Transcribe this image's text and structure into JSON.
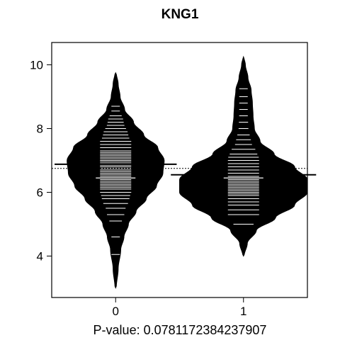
{
  "chart_data": {
    "type": "beanplot",
    "title": "KNG1",
    "xlabel": "P-value: 0.0781172384237907",
    "ylabel": "",
    "categories": [
      "0",
      "1"
    ],
    "xlim": [
      -0.5,
      1.5
    ],
    "ylim": [
      2.7,
      10.7
    ],
    "yticks": [
      4,
      6,
      8,
      10
    ],
    "overall_mean": 6.75,
    "series": [
      {
        "group": "0",
        "mean": 6.88,
        "median": 6.45,
        "min": 3.0,
        "max": 9.75,
        "density": [
          [
            3.0,
            0.005
          ],
          [
            3.6,
            0.02
          ],
          [
            4.2,
            0.04
          ],
          [
            4.6,
            0.065
          ],
          [
            5.0,
            0.1
          ],
          [
            5.4,
            0.16
          ],
          [
            5.8,
            0.24
          ],
          [
            6.2,
            0.32
          ],
          [
            6.6,
            0.37
          ],
          [
            7.0,
            0.38
          ],
          [
            7.4,
            0.33
          ],
          [
            7.8,
            0.22
          ],
          [
            8.2,
            0.14
          ],
          [
            8.6,
            0.07
          ],
          [
            9.0,
            0.035
          ],
          [
            9.4,
            0.02
          ],
          [
            9.75,
            0.005
          ]
        ],
        "observations": [
          4.05,
          4.6,
          5.1,
          5.3,
          5.5,
          5.65,
          5.8,
          5.9,
          6.0,
          6.1,
          6.15,
          6.2,
          6.25,
          6.3,
          6.35,
          6.4,
          6.45,
          6.5,
          6.55,
          6.6,
          6.65,
          6.7,
          6.75,
          6.8,
          6.85,
          6.9,
          6.95,
          7.0,
          7.05,
          7.1,
          7.15,
          7.2,
          7.25,
          7.3,
          7.4,
          7.5,
          7.6,
          7.7,
          7.8,
          7.9,
          8.0,
          8.1,
          8.2,
          8.3,
          8.4,
          8.55,
          8.7
        ]
      },
      {
        "group": "1",
        "mean": 6.55,
        "median": 6.45,
        "min": 4.0,
        "max": 10.25,
        "density": [
          [
            4.0,
            0.005
          ],
          [
            4.4,
            0.03
          ],
          [
            4.8,
            0.1
          ],
          [
            5.2,
            0.25
          ],
          [
            5.6,
            0.4
          ],
          [
            6.0,
            0.5
          ],
          [
            6.4,
            0.5
          ],
          [
            6.8,
            0.4
          ],
          [
            7.2,
            0.24
          ],
          [
            7.6,
            0.13
          ],
          [
            8.0,
            0.085
          ],
          [
            8.4,
            0.075
          ],
          [
            8.8,
            0.07
          ],
          [
            9.2,
            0.06
          ],
          [
            9.6,
            0.035
          ],
          [
            10.0,
            0.015
          ],
          [
            10.25,
            0.003
          ]
        ],
        "observations": [
          5.0,
          5.3,
          5.45,
          5.6,
          5.7,
          5.8,
          5.9,
          5.95,
          6.0,
          6.05,
          6.1,
          6.15,
          6.2,
          6.25,
          6.3,
          6.35,
          6.4,
          6.45,
          6.5,
          6.55,
          6.6,
          6.7,
          6.8,
          6.9,
          7.0,
          7.1,
          7.2,
          7.35,
          7.5,
          7.65,
          7.8,
          8.0,
          8.2,
          8.4,
          8.6,
          8.8,
          9.0,
          9.25
        ]
      }
    ],
    "colors": {
      "bean": "#000000",
      "bean_line": "#ffffff",
      "mean_line": "#000000",
      "reference_line": "#000000"
    }
  }
}
